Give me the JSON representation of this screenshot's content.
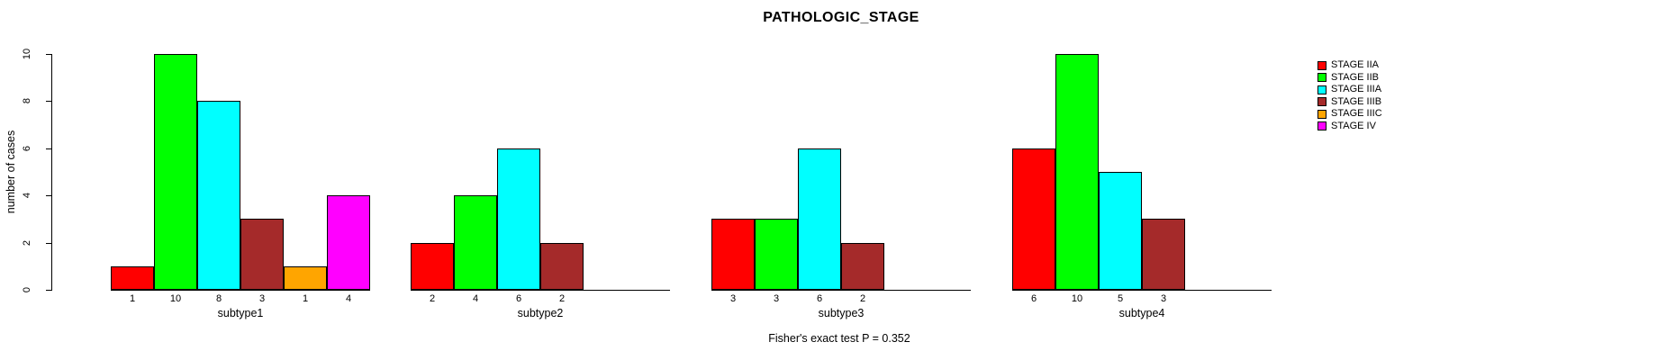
{
  "title": "PATHOLOGIC_STAGE",
  "footer": "Fisher's exact test P = 0.352",
  "y_axis": {
    "label": "number of cases",
    "ticks": [
      0,
      2,
      4,
      6,
      8,
      10
    ]
  },
  "chart_data": {
    "type": "bar",
    "title": "PATHOLOGIC_STAGE",
    "xlabel": "",
    "ylabel": "number of cases",
    "ylim": [
      0,
      10
    ],
    "grid": false,
    "legend_position": "right",
    "bar_value_labels": true,
    "categories": [
      "subtype1",
      "subtype2",
      "subtype3",
      "subtype4"
    ],
    "series": [
      {
        "name": "STAGE IIA",
        "color": "#FF0000",
        "values": [
          1,
          2,
          3,
          6
        ]
      },
      {
        "name": "STAGE IIB",
        "color": "#00FF00",
        "values": [
          10,
          4,
          3,
          10
        ]
      },
      {
        "name": "STAGE IIIA",
        "color": "#00FFFF",
        "values": [
          8,
          6,
          6,
          5
        ]
      },
      {
        "name": "STAGE IIIB",
        "color": "#A52A2A",
        "values": [
          3,
          2,
          2,
          3
        ]
      },
      {
        "name": "STAGE IIIC",
        "color": "#FFA500",
        "values": [
          1,
          null,
          null,
          null
        ]
      },
      {
        "name": "STAGE IV",
        "color": "#FF00FF",
        "values": [
          4,
          null,
          null,
          null
        ]
      }
    ],
    "annotation": "Fisher's exact test P = 0.352"
  }
}
